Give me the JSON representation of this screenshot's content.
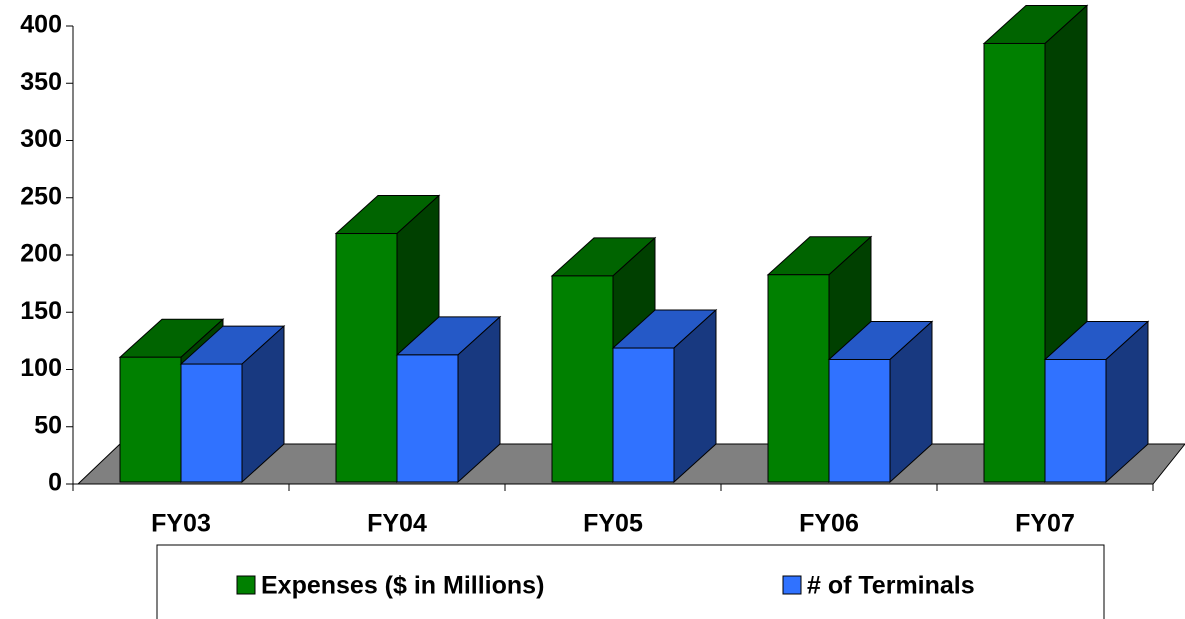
{
  "chart_data": {
    "type": "bar3d",
    "categories": [
      "FY03",
      "FY04",
      "FY05",
      "FY06",
      "FY07"
    ],
    "series": [
      {
        "name": "Expenses ($ in Millions)",
        "color": "#008000",
        "values": [
          109,
          217,
          180,
          181,
          383
        ]
      },
      {
        "name": "# of Terminals",
        "color": "#3072ff",
        "values": [
          103,
          111,
          117,
          107,
          107
        ]
      }
    ],
    "ylim": [
      0,
      400
    ],
    "yticks": [
      0,
      50,
      100,
      150,
      200,
      250,
      300,
      350,
      400
    ],
    "legend": "bottom"
  }
}
